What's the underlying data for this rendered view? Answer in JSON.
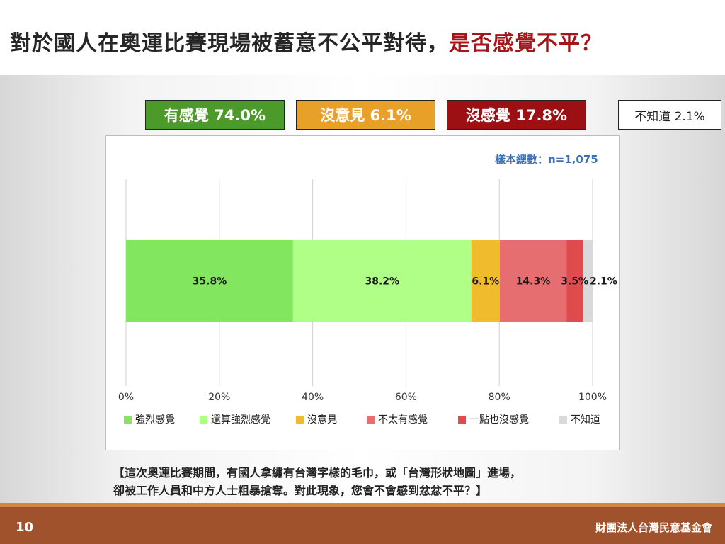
{
  "slide": {
    "title_main": "對於國人在奧運比賽現場被蓄意不公平對待，",
    "title_highlight": "是否感覺不平？",
    "page_number": "10",
    "organization": "財團法人台灣民意基金會",
    "question_line1": "【這次奧運比賽期間，有國人拿繡有台灣字樣的毛巾，或「台灣形狀地圖」進場，",
    "question_line2": "卻被工作人員和中方人士粗暴搶奪。對此現象，您會不會感到忿忿不平？】"
  },
  "summary": [
    {
      "label": "有感覺 74.0%",
      "bg": "#4c9a2a",
      "fg": "#ffffff"
    },
    {
      "label": "沒意見 6.1%",
      "bg": "#e8a028",
      "fg": "#ffffff"
    },
    {
      "label": "沒感覺 17.8%",
      "bg": "#9c0f12",
      "fg": "#ffffff"
    },
    {
      "label": "不知道 2.1%",
      "bg": "#ffffff",
      "fg": "#222222"
    }
  ],
  "sample_note": "樣本總數：n=1,075",
  "chart_data": {
    "type": "bar",
    "orientation": "horizontal",
    "stacked": true,
    "xlim": [
      0,
      100
    ],
    "x_ticks": [
      "0%",
      "20%",
      "40%",
      "60%",
      "80%",
      "100%"
    ],
    "grid": true,
    "legend_position": "bottom",
    "series": [
      {
        "name": "強烈感覺",
        "value": 35.8,
        "label": "35.8%",
        "color": "#82e65f"
      },
      {
        "name": "還算強烈感覺",
        "value": 38.2,
        "label": "38.2%",
        "color": "#b0ff86"
      },
      {
        "name": "沒意見",
        "value": 6.1,
        "label": "6.1%",
        "color": "#f0bb2c"
      },
      {
        "name": "不太有感覺",
        "value": 14.3,
        "label": "14.3%",
        "color": "#e66e70"
      },
      {
        "name": "一點也沒感覺",
        "value": 3.5,
        "label": "3.5%",
        "color": "#e04b4e"
      },
      {
        "name": "不知道",
        "value": 2.1,
        "label": "2.1%",
        "color": "#d9d9d9"
      }
    ]
  }
}
